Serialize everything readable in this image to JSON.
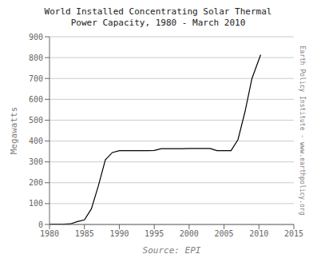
{
  "chart_data": {
    "type": "line",
    "title": "World Installed Concentrating Solar Thermal\nPower Capacity, 1980 - March 2010",
    "xlabel": "Source: EPI",
    "ylabel": "Megawatts",
    "annotation": "Earth Policy Institute - www.earthpolicy.org",
    "x": [
      1980,
      1981,
      1982,
      1983,
      1984,
      1985,
      1986,
      1987,
      1988,
      1989,
      1990,
      1991,
      1992,
      1993,
      1994,
      1995,
      1996,
      1997,
      1998,
      1999,
      2000,
      2001,
      2002,
      2003,
      2004,
      2005,
      2006,
      2007,
      2008,
      2009,
      2010.25
    ],
    "values": [
      2,
      2,
      2,
      3,
      14,
      22,
      75,
      185,
      310,
      345,
      354,
      354,
      354,
      354,
      354,
      355,
      363,
      363,
      363,
      363,
      364,
      364,
      364,
      364,
      354,
      354,
      354,
      407,
      540,
      700,
      814
    ],
    "color": "#000000",
    "xlim": [
      1980,
      2015
    ],
    "ylim": [
      0,
      900
    ],
    "xticks": [
      1980,
      1985,
      1990,
      1995,
      2000,
      2005,
      2010,
      2015
    ],
    "yticks": [
      0,
      100,
      200,
      300,
      400,
      500,
      600,
      700,
      800,
      900
    ],
    "grid": "y"
  }
}
